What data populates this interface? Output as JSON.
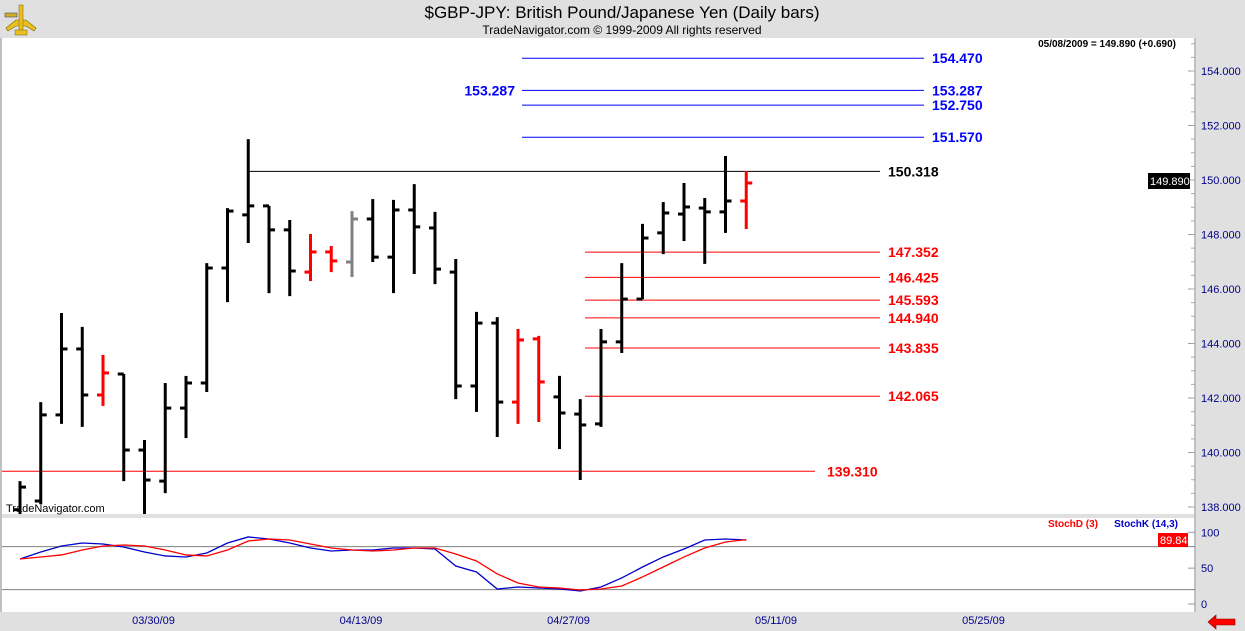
{
  "header": {
    "title": "$GBP-JPY:  British Pound/Japanese Yen  (Daily bars)",
    "subtitle": "TradeNavigator.com © 1999-2009 All rights reserved",
    "last_readout": "05/08/2009 = 149.890 (+0.690)",
    "watermark": "TradeNavigator.com",
    "logo": "sextant-logo"
  },
  "chart_data": [
    {
      "type": "ohlc-bar",
      "title": "$GBP-JPY:  British Pound/Japanese Yen  (Daily bars)",
      "ylim": [
        137.6,
        155.2
      ],
      "y_ticks": [
        "154.000",
        "152.000",
        "150.000",
        "148.000",
        "146.000",
        "144.000",
        "142.000",
        "140.000",
        "138.000"
      ],
      "y_tick_values": [
        154,
        152,
        150,
        148,
        146,
        144,
        142,
        140,
        138
      ],
      "x_tick_labels": [
        "03/30/09",
        "04/13/09",
        "04/27/09",
        "05/11/09",
        "05/25/09"
      ],
      "x_tick_index": [
        6,
        16,
        26,
        36,
        46
      ],
      "last_price_label": "149.890",
      "colors": {
        "black": "#000000",
        "red": "#ff0000",
        "gray": "#808080"
      },
      "bars": [
        {
          "date": "03/20/09",
          "o": 137.9,
          "h": 138.95,
          "l": 137.6,
          "c": 138.73,
          "color": "black"
        },
        {
          "date": "03/23/09",
          "o": 138.22,
          "h": 141.85,
          "l": 138.1,
          "c": 141.38,
          "color": "black"
        },
        {
          "date": "03/24/09",
          "o": 141.38,
          "h": 145.12,
          "l": 141.05,
          "c": 143.8,
          "color": "black"
        },
        {
          "date": "03/25/09",
          "o": 143.8,
          "h": 144.61,
          "l": 140.94,
          "c": 142.11,
          "color": "black"
        },
        {
          "date": "03/26/09",
          "o": 142.11,
          "h": 143.58,
          "l": 141.71,
          "c": 142.92,
          "color": "red"
        },
        {
          "date": "03/27/09",
          "o": 142.88,
          "h": 142.88,
          "l": 138.95,
          "c": 140.09,
          "color": "black"
        },
        {
          "date": "03/30/09",
          "o": 140.09,
          "h": 140.46,
          "l": 137.7,
          "c": 138.99,
          "color": "black"
        },
        {
          "date": "03/31/09",
          "o": 138.95,
          "h": 142.55,
          "l": 138.51,
          "c": 141.63,
          "color": "black"
        },
        {
          "date": "04/01/09",
          "o": 141.63,
          "h": 142.81,
          "l": 140.53,
          "c": 142.55,
          "color": "black"
        },
        {
          "date": "04/02/09",
          "o": 142.55,
          "h": 146.95,
          "l": 142.22,
          "c": 146.77,
          "color": "black"
        },
        {
          "date": "04/03/09",
          "o": 146.77,
          "h": 148.97,
          "l": 145.52,
          "c": 148.86,
          "color": "black"
        },
        {
          "date": "04/06/09",
          "o": 148.72,
          "h": 151.5,
          "l": 147.69,
          "c": 149.05,
          "color": "black"
        },
        {
          "date": "04/07/09",
          "o": 149.05,
          "h": 149.05,
          "l": 145.85,
          "c": 148.17,
          "color": "black"
        },
        {
          "date": "04/08/09",
          "o": 148.17,
          "h": 148.53,
          "l": 145.74,
          "c": 146.66,
          "color": "black"
        },
        {
          "date": "04/09/09",
          "o": 146.62,
          "h": 148.02,
          "l": 146.29,
          "c": 147.36,
          "color": "red"
        },
        {
          "date": "04/10/09",
          "o": 147.36,
          "h": 147.58,
          "l": 146.62,
          "c": 147.03,
          "color": "red"
        },
        {
          "date": "04/13/09",
          "o": 146.99,
          "h": 148.86,
          "l": 146.44,
          "c": 148.57,
          "color": "gray"
        },
        {
          "date": "04/14/09",
          "o": 148.57,
          "h": 149.3,
          "l": 146.99,
          "c": 147.17,
          "color": "black"
        },
        {
          "date": "04/15/09",
          "o": 147.17,
          "h": 149.27,
          "l": 145.85,
          "c": 148.9,
          "color": "black"
        },
        {
          "date": "04/16/09",
          "o": 148.9,
          "h": 149.85,
          "l": 146.55,
          "c": 148.28,
          "color": "black"
        },
        {
          "date": "04/17/09",
          "o": 148.24,
          "h": 148.83,
          "l": 146.18,
          "c": 146.73,
          "color": "black"
        },
        {
          "date": "04/20/09",
          "o": 146.62,
          "h": 147.1,
          "l": 141.96,
          "c": 142.44,
          "color": "black"
        },
        {
          "date": "04/21/09",
          "o": 142.44,
          "h": 145.16,
          "l": 141.49,
          "c": 144.75,
          "color": "black"
        },
        {
          "date": "04/22/09",
          "o": 144.75,
          "h": 144.97,
          "l": 140.57,
          "c": 141.85,
          "color": "black"
        },
        {
          "date": "04/23/09",
          "o": 141.85,
          "h": 144.53,
          "l": 141.05,
          "c": 144.13,
          "color": "red"
        },
        {
          "date": "04/24/09",
          "o": 144.17,
          "h": 144.28,
          "l": 141.12,
          "c": 142.59,
          "color": "red"
        },
        {
          "date": "04/27/09",
          "o": 142.04,
          "h": 142.81,
          "l": 140.13,
          "c": 141.45,
          "color": "black"
        },
        {
          "date": "04/28/09",
          "o": 141.41,
          "h": 141.96,
          "l": 138.99,
          "c": 141.01,
          "color": "black"
        },
        {
          "date": "04/29/09",
          "o": 141.05,
          "h": 144.53,
          "l": 140.94,
          "c": 144.06,
          "color": "black"
        },
        {
          "date": "04/30/09",
          "o": 144.06,
          "h": 146.95,
          "l": 143.65,
          "c": 145.63,
          "color": "black"
        },
        {
          "date": "05/01/09",
          "o": 145.63,
          "h": 148.39,
          "l": 145.63,
          "c": 147.87,
          "color": "black"
        },
        {
          "date": "05/04/09",
          "o": 148.06,
          "h": 149.19,
          "l": 147.28,
          "c": 148.79,
          "color": "black"
        },
        {
          "date": "05/05/09",
          "o": 148.75,
          "h": 149.89,
          "l": 147.76,
          "c": 149.01,
          "color": "black"
        },
        {
          "date": "05/06/09",
          "o": 148.97,
          "h": 149.34,
          "l": 146.92,
          "c": 148.83,
          "color": "black"
        },
        {
          "date": "05/07/09",
          "o": 148.83,
          "h": 150.88,
          "l": 148.06,
          "c": 149.23,
          "color": "black"
        },
        {
          "date": "05/08/09",
          "o": 149.23,
          "h": 150.33,
          "l": 148.2,
          "c": 149.89,
          "color": "red"
        }
      ],
      "levels": [
        {
          "price": 154.47,
          "label": "154.470",
          "color": "#0000ff"
        },
        {
          "price": 153.287,
          "label": "153.287",
          "color": "#0000ff",
          "left_label": "153.287"
        },
        {
          "price": 152.75,
          "label": "152.750",
          "color": "#0000ff"
        },
        {
          "price": 151.57,
          "label": "151.570",
          "color": "#0000ff"
        },
        {
          "price": 150.318,
          "label": "150.318",
          "color": "#000000"
        },
        {
          "price": 147.352,
          "label": "147.352",
          "color": "#ff0000"
        },
        {
          "price": 146.425,
          "label": "146.425",
          "color": "#ff0000"
        },
        {
          "price": 145.593,
          "label": "145.593",
          "color": "#ff0000"
        },
        {
          "price": 144.94,
          "label": "144.940",
          "color": "#ff0000"
        },
        {
          "price": 143.835,
          "label": "143.835",
          "color": "#ff0000"
        },
        {
          "price": 142.065,
          "label": "142.065",
          "color": "#ff0000"
        },
        {
          "price": 139.31,
          "label": "139.310",
          "color": "#ff0000"
        }
      ]
    },
    {
      "type": "line",
      "ylim": [
        0,
        100
      ],
      "y_ticks": [
        "100",
        "50",
        "0"
      ],
      "y_tick_values": [
        100,
        50,
        0
      ],
      "reference_lines": [
        80,
        20
      ],
      "last_value_label": "89.84",
      "series": [
        {
          "name": "StochD (3)",
          "color": "#ff0000",
          "values": [
            62.8,
            65.6,
            68.4,
            75.3,
            80.9,
            82.3,
            80.9,
            75.3,
            68.4,
            67.0,
            75.3,
            87.9,
            90.7,
            89.3,
            83.7,
            78.1,
            75.3,
            73.9,
            75.3,
            78.1,
            78.1,
            69.7,
            60.0,
            41.9,
            29.3,
            23.7,
            22.3,
            19.5,
            20.9,
            25.1,
            37.7,
            51.6,
            65.6,
            78.1,
            86.5,
            89.84
          ]
        },
        {
          "name": "StochK (14,3)",
          "color": "#0000cc",
          "values": [
            62.8,
            72.5,
            80.9,
            85.1,
            83.7,
            79.5,
            72.5,
            67.0,
            65.6,
            71.1,
            85.1,
            93.5,
            90.7,
            85.1,
            78.1,
            73.9,
            75.3,
            75.3,
            78.1,
            78.1,
            76.7,
            53.0,
            44.6,
            20.9,
            23.7,
            22.3,
            20.9,
            18.1,
            23.7,
            36.3,
            51.6,
            65.6,
            76.7,
            89.3,
            90.7,
            89.3
          ]
        }
      ]
    }
  ],
  "nav": {
    "scroll_arrow": "arrow-left-icon"
  }
}
